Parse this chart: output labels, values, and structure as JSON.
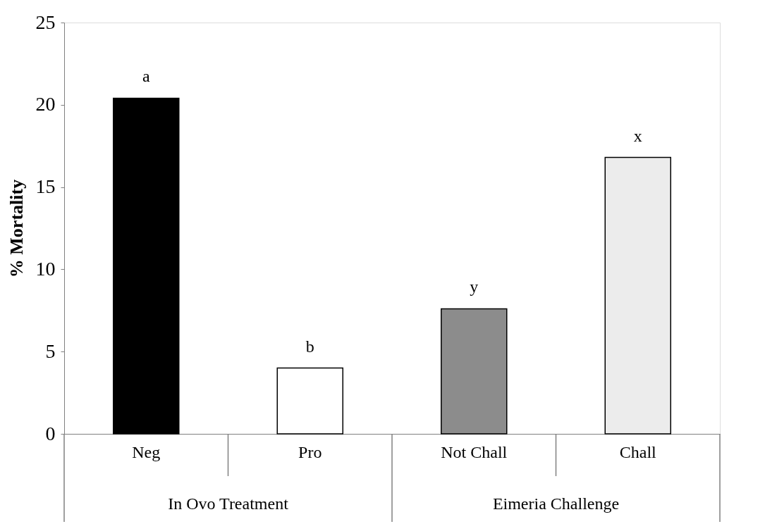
{
  "chart_data": {
    "type": "bar",
    "ylabel": "% Mortality",
    "categories": [
      "Neg",
      "Pro",
      "Not Chall",
      "Chall"
    ],
    "values": [
      20.4,
      4.0,
      7.6,
      16.8
    ],
    "colors": [
      "#000000",
      "#ffffff",
      "#8c8c8c",
      "#ececec"
    ],
    "ylim": [
      0,
      25
    ],
    "yticks": [
      0,
      5,
      10,
      15,
      20,
      25
    ],
    "grid": false,
    "annotations": [
      {
        "text": "a",
        "x": "Neg",
        "y": 20.4
      },
      {
        "text": "b",
        "x": "Pro",
        "y": 4.0
      },
      {
        "text": "y",
        "x": "Not Chall",
        "y": 7.6
      },
      {
        "text": "x",
        "x": "Chall",
        "y": 16.8
      },
      "In Ovo Treatment",
      "Eimeria Challenge"
    ]
  }
}
